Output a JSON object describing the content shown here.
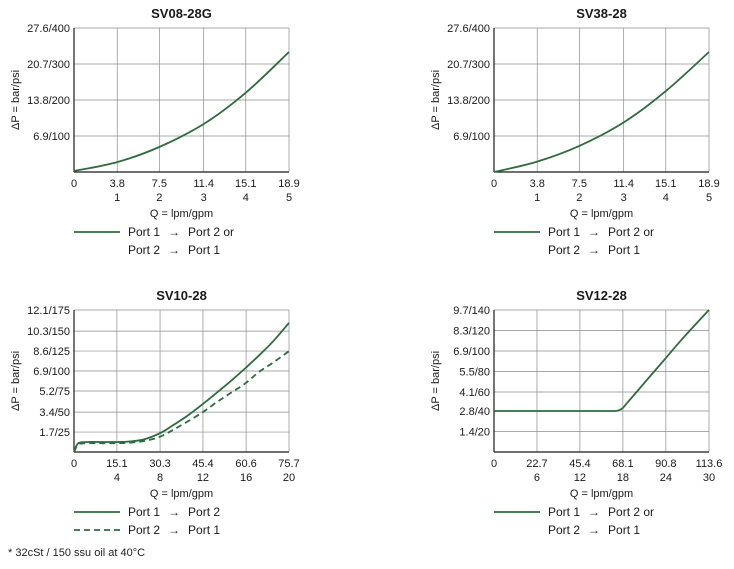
{
  "chart_data": [
    {
      "type": "line",
      "title": "SV08-28G",
      "xlabel": "Q = lpm/gpm",
      "ylabel": "ΔP = bar/psi",
      "xlim": [
        0,
        18.9
      ],
      "ylim": [
        0,
        27.6
      ],
      "x_ticks": [
        0,
        3.8,
        7.5,
        11.4,
        15.1,
        18.9
      ],
      "x_tick_labels": [
        "0",
        "3.8",
        "7.5",
        "11.4",
        "15.1",
        "18.9"
      ],
      "x_tick_labels_2": [
        "",
        "1",
        "2",
        "3",
        "4",
        "5"
      ],
      "y_ticks": [
        6.9,
        13.8,
        20.7,
        27.6
      ],
      "y_tick_labels": [
        "6.9/100",
        "13.8/200",
        "20.7/300",
        "27.6/400"
      ],
      "grid": true,
      "series": [
        {
          "style": "solid",
          "x": [
            0,
            3.8,
            7.5,
            11.4,
            15.1,
            18.9
          ],
          "y": [
            0.2,
            1.9,
            4.8,
            9.2,
            15.2,
            23.0
          ]
        }
      ],
      "legend": [
        {
          "style": "solid",
          "lines": [
            [
              "Port 1",
              "Port 2 or"
            ],
            [
              "Port 2",
              "Port 1"
            ]
          ]
        }
      ]
    },
    {
      "type": "line",
      "title": "SV38-28",
      "xlabel": "Q = lpm/gpm",
      "ylabel": "ΔP = bar/psi",
      "xlim": [
        0,
        18.9
      ],
      "ylim": [
        0,
        27.6
      ],
      "x_ticks": [
        0,
        3.8,
        7.5,
        11.4,
        15.1,
        18.9
      ],
      "x_tick_labels": [
        "0",
        "3.8",
        "7.5",
        "11.4",
        "15.1",
        "18.9"
      ],
      "x_tick_labels_2": [
        "",
        "1",
        "2",
        "3",
        "4",
        "5"
      ],
      "y_ticks": [
        6.9,
        13.8,
        20.7,
        27.6
      ],
      "y_tick_labels": [
        "6.9/100",
        "13.8/200",
        "20.7/300",
        "27.6/400"
      ],
      "grid": true,
      "series": [
        {
          "style": "solid",
          "x": [
            0,
            3.8,
            7.5,
            11.4,
            15.1,
            18.9
          ],
          "y": [
            0,
            2.0,
            5.0,
            9.5,
            15.5,
            23.0
          ]
        }
      ],
      "legend": [
        {
          "style": "solid",
          "lines": [
            [
              "Port 1",
              "Port 2 or"
            ],
            [
              "Port 2",
              "Port 1"
            ]
          ]
        }
      ]
    },
    {
      "type": "line",
      "title": "SV10-28",
      "xlabel": "Q = lpm/gpm",
      "ylabel": "ΔP = bar/psi",
      "xlim": [
        0,
        75.7
      ],
      "ylim": [
        0,
        12.1
      ],
      "x_ticks": [
        0,
        15.1,
        30.3,
        45.4,
        60.6,
        75.7
      ],
      "x_tick_labels": [
        "0",
        "15.1",
        "30.3",
        "45.4",
        "60.6",
        "75.7"
      ],
      "x_tick_labels_2": [
        "",
        "4",
        "8",
        "12",
        "16",
        "20"
      ],
      "y_ticks": [
        1.7,
        3.4,
        5.2,
        6.9,
        8.6,
        10.3,
        12.1
      ],
      "y_tick_labels": [
        "1.7/25",
        "3.4/50",
        "5.2/75",
        "6.9/100",
        "8.6/125",
        "10.3/150",
        "12.1/175"
      ],
      "grid": true,
      "series": [
        {
          "style": "solid",
          "x": [
            0,
            1,
            2,
            5,
            10,
            15.1,
            20,
            25,
            30.3,
            35,
            40,
            45.4,
            50,
            55,
            60.6,
            65,
            70,
            75.7
          ],
          "y": [
            0,
            0.6,
            0.8,
            0.85,
            0.85,
            0.85,
            0.9,
            1.1,
            1.6,
            2.3,
            3.1,
            4.1,
            5.0,
            6.0,
            7.2,
            8.2,
            9.4,
            11.0
          ]
        },
        {
          "style": "dashed",
          "x": [
            0,
            1,
            2,
            5,
            10,
            15.1,
            20,
            25,
            30.3,
            35,
            40,
            45.4,
            50,
            55,
            60.6,
            65,
            70,
            75.7
          ],
          "y": [
            0,
            0.5,
            0.7,
            0.75,
            0.75,
            0.75,
            0.8,
            0.95,
            1.3,
            1.9,
            2.6,
            3.4,
            4.2,
            5.0,
            5.9,
            6.8,
            7.6,
            8.6
          ]
        }
      ],
      "legend": [
        {
          "style": "solid",
          "lines": [
            [
              "Port 1",
              "Port 2"
            ]
          ]
        },
        {
          "style": "dashed",
          "lines": [
            [
              "Port 2",
              "Port 1"
            ]
          ]
        }
      ]
    },
    {
      "type": "line",
      "title": "SV12-28",
      "xlabel": "Q = lpm/gpm",
      "ylabel": "ΔP = bar/psi",
      "xlim": [
        0,
        113.6
      ],
      "ylim": [
        0,
        9.7
      ],
      "x_ticks": [
        0,
        22.7,
        45.4,
        68.1,
        90.8,
        113.6
      ],
      "x_tick_labels": [
        "0",
        "22.7",
        "45.4",
        "68.1",
        "90.8",
        "113.6"
      ],
      "x_tick_labels_2": [
        "",
        "6",
        "12",
        "18",
        "24",
        "30"
      ],
      "y_ticks": [
        1.4,
        2.8,
        4.1,
        5.5,
        6.9,
        8.3,
        9.7
      ],
      "y_tick_labels": [
        "1.4/20",
        "2.8/40",
        "4.1/60",
        "5.5/80",
        "6.9/100",
        "8.3/120",
        "9.7/140"
      ],
      "grid": true,
      "series": [
        {
          "style": "solid",
          "x": [
            0,
            20,
            40,
            60,
            64,
            66,
            68,
            70,
            80,
            90,
            100,
            113.6
          ],
          "y": [
            2.8,
            2.8,
            2.8,
            2.8,
            2.8,
            2.85,
            3.0,
            3.3,
            4.8,
            6.3,
            7.8,
            9.7
          ]
        }
      ],
      "legend": [
        {
          "style": "solid",
          "lines": [
            [
              "Port 1",
              "Port 2 or"
            ],
            [
              "Port 2",
              "Port 1"
            ]
          ]
        }
      ]
    }
  ],
  "legend_arrow": "→",
  "footnote": "* 32cSt / 150 ssu oil at 40°C",
  "colors": {
    "line": "#2e6b3f",
    "grid": "#8c8c8c",
    "axis": "#1a1a1a",
    "text": "#1a1a1a"
  }
}
